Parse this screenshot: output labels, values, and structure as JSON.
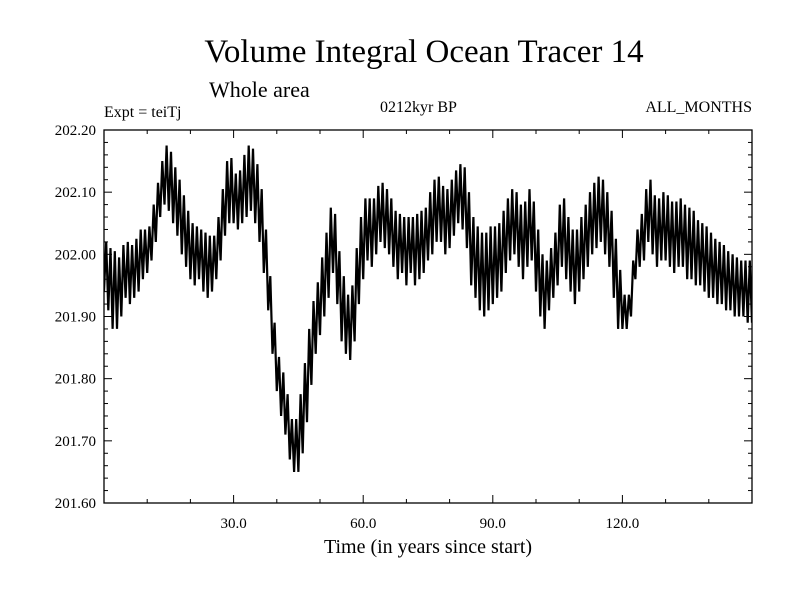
{
  "header": {
    "title": "Volume Integral Ocean Tracer 14",
    "subtitle": "Whole area",
    "expt": "Expt = teiTj",
    "period": "0212kyr BP",
    "months": "ALL_MONTHS"
  },
  "chart_data": {
    "type": "line",
    "title": "Volume Integral Ocean Tracer 14",
    "subtitle": "Whole area",
    "xlabel": "Time (in years since start)",
    "ylabel": "",
    "xlim": [
      0,
      150
    ],
    "ylim": [
      201.6,
      202.2
    ],
    "grid": false,
    "x_ticks": [
      30,
      60,
      90,
      120
    ],
    "x_tick_labels": [
      "30.0",
      "60.0",
      "90.0",
      "120.0"
    ],
    "x_minor_step": 10,
    "y_ticks": [
      201.6,
      201.7,
      201.8,
      201.9,
      202.0,
      202.1,
      202.2
    ],
    "y_tick_labels": [
      "201.60",
      "201.70",
      "201.80",
      "201.90",
      "202.00",
      "202.10",
      "202.20"
    ],
    "y_minor_step": 0.02,
    "color": "#000000",
    "series": [
      {
        "note_points_per_year": 1,
        "x": [
          0,
          1,
          2,
          3,
          4,
          5,
          6,
          7,
          8,
          9,
          10,
          11,
          12,
          13,
          14,
          15,
          16,
          17,
          18,
          19,
          20,
          21,
          22,
          23,
          24,
          25,
          26,
          27,
          28,
          29,
          30,
          31,
          32,
          33,
          34,
          35,
          36,
          37,
          38,
          39,
          40,
          41,
          42,
          43,
          44,
          45,
          46,
          47,
          48,
          49,
          50,
          51,
          52,
          53,
          54,
          55,
          56,
          57,
          58,
          59,
          60,
          61,
          62,
          63,
          64,
          65,
          66,
          67,
          68,
          69,
          70,
          71,
          72,
          73,
          74,
          75,
          76,
          77,
          78,
          79,
          80,
          81,
          82,
          83,
          84,
          85,
          86,
          87,
          88,
          89,
          90,
          91,
          92,
          93,
          94,
          95,
          96,
          97,
          98,
          99,
          100,
          101,
          102,
          103,
          104,
          105,
          106,
          107,
          108,
          109,
          110,
          111,
          112,
          113,
          114,
          115,
          116,
          117,
          118,
          119,
          120,
          121,
          122,
          123,
          124,
          125,
          126,
          127,
          128,
          129,
          130,
          131,
          132,
          133,
          134,
          135,
          136,
          137,
          138,
          139,
          140,
          141,
          142,
          143,
          144,
          145,
          146,
          147,
          148,
          149,
          150
        ],
        "hi": [
          202.04,
          202.0,
          202.02,
          201.99,
          202.0,
          202.03,
          202.01,
          202.02,
          202.03,
          202.05,
          202.03,
          202.06,
          202.1,
          202.13,
          202.17,
          202.18,
          202.15,
          202.13,
          202.11,
          202.08,
          202.06,
          202.04,
          202.05,
          202.03,
          202.04,
          202.02,
          202.04,
          202.08,
          202.13,
          202.17,
          202.14,
          202.12,
          202.15,
          202.17,
          202.18,
          202.16,
          202.13,
          202.08,
          202.0,
          201.93,
          201.85,
          201.82,
          201.8,
          201.75,
          201.72,
          201.75,
          201.8,
          201.85,
          201.91,
          201.94,
          201.97,
          202.02,
          202.05,
          202.1,
          202.03,
          201.98,
          201.95,
          201.92,
          201.98,
          202.04,
          202.08,
          202.1,
          202.08,
          202.1,
          202.12,
          202.11,
          202.1,
          202.08,
          202.06,
          202.07,
          202.05,
          202.07,
          202.05,
          202.08,
          202.06,
          202.09,
          202.11,
          202.13,
          202.12,
          202.1,
          202.11,
          202.13,
          202.14,
          202.15,
          202.13,
          202.07,
          202.05,
          202.04,
          202.03,
          202.04,
          202.05,
          202.04,
          202.06,
          202.08,
          202.1,
          202.11,
          202.09,
          202.07,
          202.1,
          202.11,
          202.06,
          202.02,
          201.98,
          202.0,
          202.02,
          202.05,
          202.11,
          202.07,
          202.05,
          202.03,
          202.05,
          202.07,
          202.09,
          202.11,
          202.12,
          202.13,
          202.11,
          202.09,
          202.05,
          202.0,
          201.95,
          201.92,
          201.95,
          202.03,
          202.05,
          202.08,
          202.13,
          202.11,
          202.08,
          202.1,
          202.1,
          202.09,
          202.08,
          202.09,
          202.09,
          202.07,
          202.08,
          202.06,
          202.05,
          202.05,
          202.04,
          202.03,
          202.02,
          202.02,
          202.01,
          202.0,
          202.0,
          201.99,
          201.99,
          201.99,
          201.99
        ],
        "lo": [
          201.94,
          201.91,
          201.88,
          201.88,
          201.9,
          201.93,
          201.92,
          201.93,
          201.94,
          201.96,
          201.97,
          201.99,
          202.02,
          202.06,
          202.08,
          202.07,
          202.05,
          202.03,
          202.0,
          201.98,
          201.96,
          201.95,
          201.96,
          201.94,
          201.93,
          201.94,
          201.96,
          201.99,
          202.03,
          202.05,
          202.05,
          202.04,
          202.05,
          202.06,
          202.07,
          202.05,
          202.02,
          201.97,
          201.91,
          201.84,
          201.78,
          201.74,
          201.71,
          201.67,
          201.65,
          201.65,
          201.68,
          201.73,
          201.79,
          201.84,
          201.87,
          201.9,
          201.93,
          201.97,
          201.92,
          201.86,
          201.84,
          201.83,
          201.86,
          201.92,
          201.96,
          201.99,
          201.98,
          202.0,
          202.02,
          202.01,
          202.0,
          201.98,
          201.96,
          201.97,
          201.95,
          201.97,
          201.95,
          201.96,
          201.97,
          201.99,
          202.0,
          202.02,
          202.02,
          202.0,
          202.01,
          202.03,
          202.05,
          202.04,
          202.01,
          201.95,
          201.93,
          201.91,
          201.9,
          201.91,
          201.92,
          201.93,
          201.94,
          201.97,
          201.99,
          202.0,
          201.98,
          201.96,
          201.98,
          201.99,
          201.94,
          201.9,
          201.88,
          201.91,
          201.93,
          201.95,
          201.98,
          201.96,
          201.94,
          201.92,
          201.94,
          201.96,
          201.98,
          202.0,
          202.01,
          202.02,
          202.0,
          201.98,
          201.93,
          201.88,
          201.88,
          201.88,
          201.9,
          201.96,
          201.98,
          201.99,
          202.02,
          202.0,
          201.98,
          201.99,
          201.99,
          201.98,
          201.97,
          201.98,
          201.98,
          201.96,
          201.96,
          201.95,
          201.95,
          201.94,
          201.93,
          201.93,
          201.92,
          201.92,
          201.91,
          201.91,
          201.9,
          201.9,
          201.9,
          201.89,
          201.89
        ]
      }
    ]
  }
}
